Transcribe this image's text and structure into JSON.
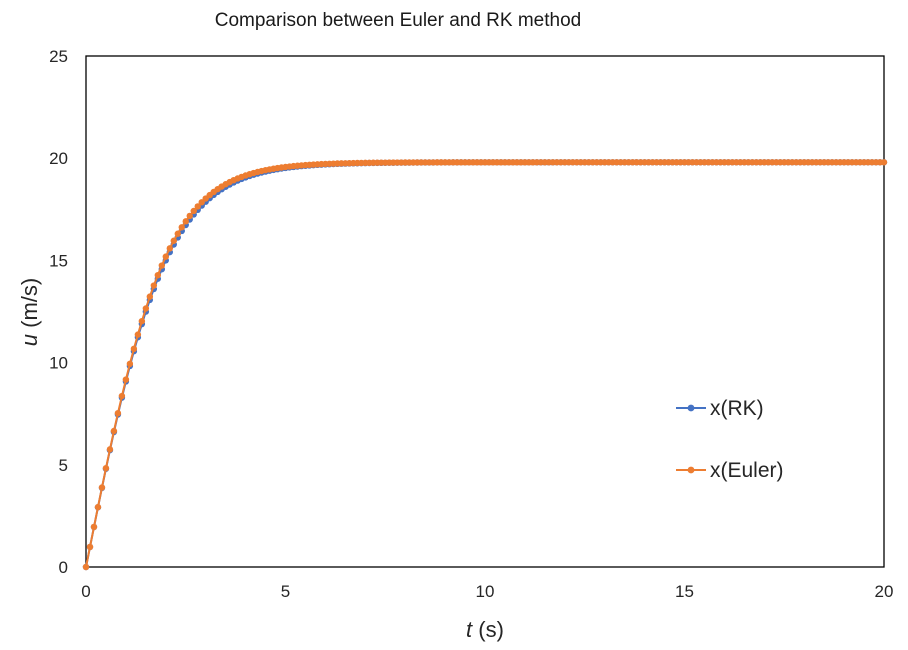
{
  "chart_data": {
    "type": "line",
    "title": "Comparison between Euler and RK method",
    "xlabel": {
      "italic": "t",
      "rest": " (s)"
    },
    "ylabel": {
      "italic": "u",
      "rest": " (m/s)"
    },
    "xlim": [
      0,
      20
    ],
    "ylim": [
      0,
      25
    ],
    "xticks": [
      0,
      5,
      10,
      15,
      20
    ],
    "xtick_labels": [
      "0",
      "5",
      "10",
      "15",
      "20"
    ],
    "yticks": [
      0,
      5,
      10,
      15,
      20,
      25
    ],
    "ytick_labels": [
      "0",
      "5",
      "10",
      "15",
      "20",
      "25"
    ],
    "grid": false,
    "legend_position": "right",
    "series": [
      {
        "name": "x(RK)",
        "color": "#4472C4",
        "marker": "circle",
        "x_start": 0,
        "x_end": 20,
        "x_step": 0.1,
        "model": {
          "terminal": 19.8,
          "initial_slope": 9.81,
          "form": "u = terminal * tanh(initial_slope * t / terminal)"
        },
        "sample_points": [
          [
            0,
            0
          ],
          [
            1,
            8.5
          ],
          [
            2,
            14.7
          ],
          [
            3,
            17.8
          ],
          [
            4,
            19.1
          ],
          [
            5,
            19.6
          ],
          [
            6,
            19.75
          ],
          [
            8,
            19.8
          ],
          [
            10,
            19.8
          ],
          [
            20,
            19.8
          ]
        ]
      },
      {
        "name": "x(Euler)",
        "color": "#ED7D31",
        "marker": "circle",
        "x_start": 0,
        "x_end": 20,
        "x_step": 0.1,
        "model": {
          "terminal": 19.8,
          "initial_slope": 9.81,
          "form": "explicit Euler integration of du/dt = g(1 - (u/terminal)^2)"
        },
        "sample_points": [
          [
            0,
            0
          ],
          [
            1,
            8.8
          ],
          [
            2,
            15.0
          ],
          [
            3,
            18.0
          ],
          [
            4,
            19.2
          ],
          [
            5,
            19.6
          ],
          [
            6,
            19.75
          ],
          [
            8,
            19.8
          ],
          [
            10,
            19.8
          ],
          [
            20,
            19.8
          ]
        ]
      }
    ]
  }
}
